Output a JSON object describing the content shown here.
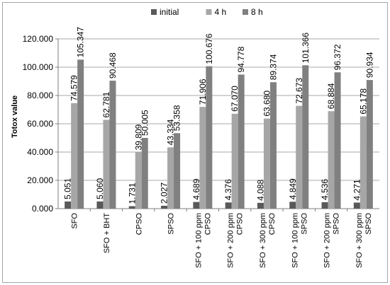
{
  "chart_data": {
    "type": "bar",
    "title": "",
    "xlabel": "",
    "ylabel": "Totox value",
    "ylim": [
      0,
      120
    ],
    "ytick_labels": [
      "0.000",
      "20.000",
      "40.000",
      "60.000",
      "80.000",
      "100.000",
      "120.000"
    ],
    "grid": true,
    "legend_position": "top",
    "categories": [
      [
        "SFO"
      ],
      [
        "SFO + BHT"
      ],
      [
        "CPSO"
      ],
      [
        "SPSO"
      ],
      [
        "SFO + 100 ppm",
        "CPSO"
      ],
      [
        "SFO + 200 ppm",
        "CPSO"
      ],
      [
        "SFO + 300 ppm",
        "CPSO"
      ],
      [
        "SFO + 100 ppm",
        "SPSO"
      ],
      [
        "SFO + 200 ppm",
        "SPSO"
      ],
      [
        "SFO + 300 ppm",
        "SPSO"
      ]
    ],
    "series": [
      {
        "name": "initial",
        "color": "#595959",
        "values": [
          5.051,
          5.06,
          1.731,
          2.027,
          4.689,
          4.376,
          4.088,
          4.849,
          4.536,
          4.271
        ],
        "labels": [
          "5.051",
          "5.060",
          "1.731",
          "2.027",
          "4.689",
          "4.376",
          "4.088",
          "4.849",
          "4.536",
          "4.271"
        ]
      },
      {
        "name": "4 h",
        "color": "#a6a6a6",
        "values": [
          74.579,
          62.781,
          39.809,
          43.334,
          71.906,
          67.07,
          63.68,
          72.673,
          68.884,
          65.178
        ],
        "labels": [
          "74.579",
          "62.781",
          "39.809",
          "43.334",
          "71.906",
          "67.070",
          "63.680",
          "72.673",
          "68.884",
          "65.178"
        ]
      },
      {
        "name": "8 h",
        "color": "#808080",
        "values": [
          105.347,
          90.468,
          50.005,
          53.358,
          100.676,
          94.778,
          89.374,
          101.366,
          96.372,
          90.934
        ],
        "labels": [
          "105.347",
          "90.468",
          "50.005",
          "53.358",
          "100.676",
          "94.778",
          "89.374",
          "101.366",
          "96.372",
          "90.934"
        ]
      }
    ]
  }
}
